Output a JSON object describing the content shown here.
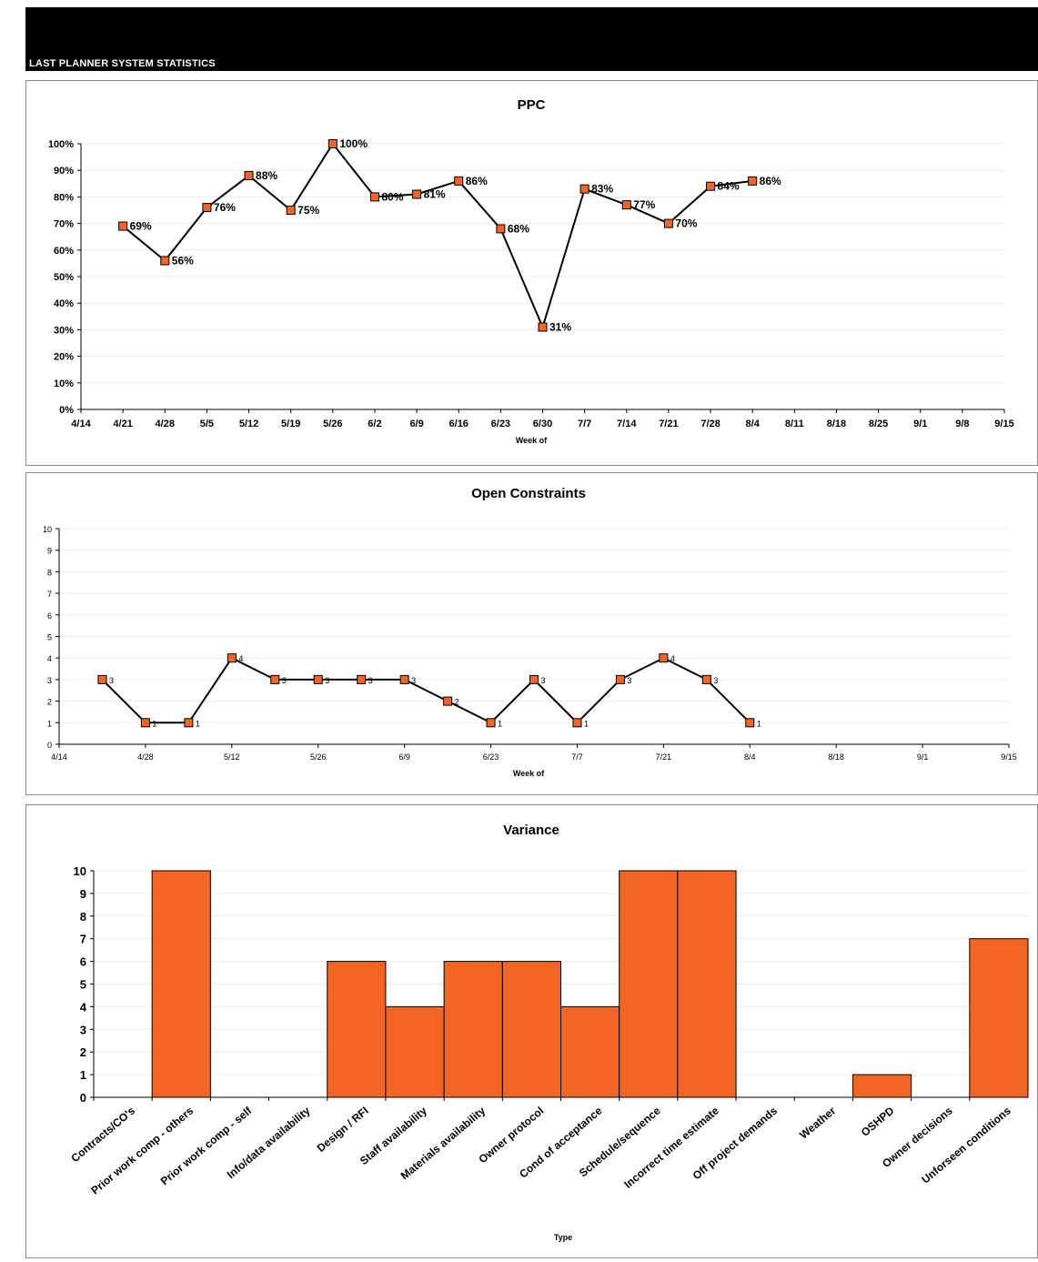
{
  "header": {
    "title": "LAST PLANNER SYSTEM STATISTICS",
    "bar_color": "#000000"
  },
  "colors": {
    "marker": "#f26522",
    "line": "#000000",
    "bar": "#f26522"
  },
  "chart_data": [
    {
      "id": "ppc",
      "type": "line",
      "title": "PPC",
      "xlabel": "Week of",
      "ylabel": "",
      "y_format": "percent",
      "ylim": [
        0,
        100
      ],
      "y_ticks": [
        "0%",
        "10%",
        "20%",
        "30%",
        "40%",
        "50%",
        "60%",
        "70%",
        "80%",
        "90%",
        "100%"
      ],
      "x_ticks": [
        "4/14",
        "4/21",
        "4/28",
        "5/5",
        "5/12",
        "5/19",
        "5/26",
        "6/2",
        "6/9",
        "6/16",
        "6/23",
        "6/30",
        "7/7",
        "7/14",
        "7/21",
        "7/28",
        "8/4",
        "8/11",
        "8/18",
        "8/25",
        "9/1",
        "9/8",
        "9/15"
      ],
      "points": [
        {
          "x": "4/21",
          "y": 69,
          "label": "69%"
        },
        {
          "x": "4/28",
          "y": 56,
          "label": "56%"
        },
        {
          "x": "5/5",
          "y": 76,
          "label": "76%"
        },
        {
          "x": "5/12",
          "y": 88,
          "label": "88%"
        },
        {
          "x": "5/19",
          "y": 75,
          "label": "75%"
        },
        {
          "x": "5/26",
          "y": 100,
          "label": "100%"
        },
        {
          "x": "6/2",
          "y": 80,
          "label": "80%"
        },
        {
          "x": "6/9",
          "y": 81,
          "label": "81%"
        },
        {
          "x": "6/16",
          "y": 86,
          "label": "86%"
        },
        {
          "x": "6/23",
          "y": 68,
          "label": "68%"
        },
        {
          "x": "6/30",
          "y": 31,
          "label": "31%"
        },
        {
          "x": "7/7",
          "y": 83,
          "label": "83%"
        },
        {
          "x": "7/14",
          "y": 77,
          "label": "77%"
        },
        {
          "x": "7/21",
          "y": 70,
          "label": "70%"
        },
        {
          "x": "7/28",
          "y": 84,
          "label": "84%"
        },
        {
          "x": "8/4",
          "y": 86,
          "label": "86%"
        }
      ],
      "grid": true,
      "legend": "none"
    },
    {
      "id": "open-constraints",
      "type": "line",
      "title": "Open Constraints",
      "xlabel": "Week of",
      "ylabel": "",
      "ylim": [
        0,
        10
      ],
      "y_ticks": [
        "0",
        "1",
        "2",
        "3",
        "4",
        "5",
        "6",
        "7",
        "8",
        "9",
        "10"
      ],
      "x_ticks": [
        "4/14",
        "4/28",
        "5/12",
        "5/26",
        "6/9",
        "6/23",
        "7/7",
        "7/21",
        "8/4",
        "8/18",
        "9/1",
        "9/15"
      ],
      "points": [
        {
          "x": "4/21",
          "y": 3,
          "label": "3"
        },
        {
          "x": "4/28",
          "y": 1,
          "label": "1"
        },
        {
          "x": "5/5",
          "y": 1,
          "label": "1"
        },
        {
          "x": "5/12",
          "y": 4,
          "label": "4"
        },
        {
          "x": "5/19",
          "y": 3,
          "label": "3"
        },
        {
          "x": "5/26",
          "y": 3,
          "label": "3"
        },
        {
          "x": "6/2",
          "y": 3,
          "label": "3"
        },
        {
          "x": "6/9",
          "y": 3,
          "label": "3"
        },
        {
          "x": "6/16",
          "y": 2,
          "label": "2"
        },
        {
          "x": "6/23",
          "y": 1,
          "label": "1"
        },
        {
          "x": "6/30",
          "y": 3,
          "label": "3"
        },
        {
          "x": "7/7",
          "y": 1,
          "label": "1"
        },
        {
          "x": "7/14",
          "y": 3,
          "label": "3"
        },
        {
          "x": "7/21",
          "y": 4,
          "label": "4"
        },
        {
          "x": "7/28",
          "y": 3,
          "label": "3"
        },
        {
          "x": "8/4",
          "y": 1,
          "label": "1"
        }
      ],
      "grid": true,
      "legend": "none"
    },
    {
      "id": "variance",
      "type": "bar",
      "title": "Variance",
      "xlabel": "Type",
      "ylabel": "",
      "ylim": [
        0,
        10
      ],
      "y_ticks": [
        "0",
        "1",
        "2",
        "3",
        "4",
        "5",
        "6",
        "7",
        "8",
        "9",
        "10"
      ],
      "categories": [
        "Contracts/CO's",
        "Prior work comp - others",
        "Prior work comp - self",
        "Info/data availability",
        "Design / RFI",
        "Staff availability",
        "Materials availability",
        "Owner protocol",
        "Cond of acceptance",
        "Schedule/sequence",
        "Incorrect time estimate",
        "Off project demands",
        "Weather",
        "OSHPD",
        "Owner decisions",
        "Unforseen conditions"
      ],
      "values": [
        0,
        10,
        0,
        0,
        6,
        4,
        6,
        6,
        4,
        10,
        10,
        0,
        0,
        1,
        0,
        7
      ],
      "grid": true,
      "legend": "none"
    }
  ]
}
